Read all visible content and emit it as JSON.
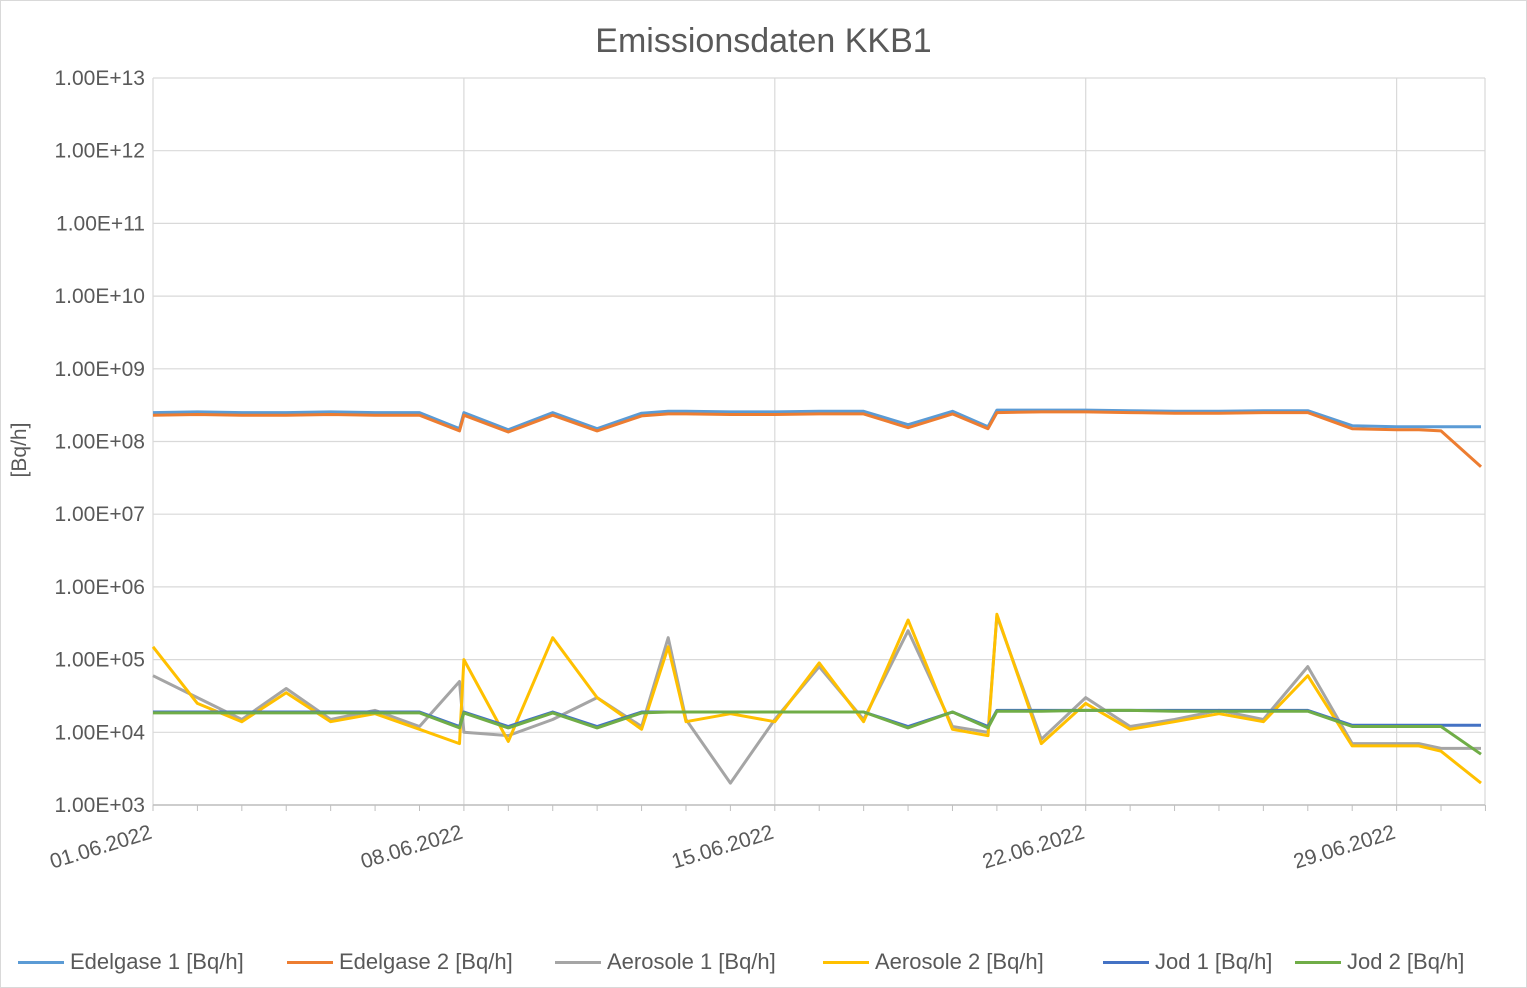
{
  "chart_data": {
    "type": "line",
    "title": "Emissionsdaten KKB1",
    "ylabel": "[Bq/h]",
    "xlabel": "",
    "y_scale": "log",
    "ylim": [
      1000,
      10000000000000
    ],
    "y_ticks": [
      "1.00E+03",
      "1.00E+04",
      "1.00E+05",
      "1.00E+06",
      "1.00E+07",
      "1.00E+08",
      "1.00E+09",
      "1.00E+10",
      "1.00E+11",
      "1.00E+12",
      "1.00E+13"
    ],
    "x_ticks": [
      "01.06.2022",
      "08.06.2022",
      "15.06.2022",
      "22.06.2022",
      "29.06.2022"
    ],
    "xlim": [
      "01.06.2022",
      "30.06.2022 23:59"
    ],
    "grid": "on",
    "legend_position": "bottom",
    "x_days": [
      1,
      2,
      3,
      4,
      5,
      6,
      7,
      7.9,
      8,
      9,
      10,
      11,
      12,
      12.6,
      13,
      14,
      15,
      16,
      17,
      18,
      19,
      19.8,
      20,
      21,
      22,
      23,
      24,
      25,
      26,
      27,
      28,
      29,
      29.5,
      30,
      30.9
    ],
    "series": [
      {
        "name": "Edelgase 1 [Bq/h]",
        "color": "#5b9bd5",
        "values": [
          250000000.0,
          255000000.0,
          250000000.0,
          250000000.0,
          255000000.0,
          250000000.0,
          250000000.0,
          150000000.0,
          250000000.0,
          145000000.0,
          250000000.0,
          150000000.0,
          245000000.0,
          260000000.0,
          260000000.0,
          255000000.0,
          255000000.0,
          260000000.0,
          260000000.0,
          170000000.0,
          260000000.0,
          160000000.0,
          270000000.0,
          270000000.0,
          270000000.0,
          265000000.0,
          260000000.0,
          260000000.0,
          265000000.0,
          265000000.0,
          165000000.0,
          160000000.0,
          160000000.0,
          160000000.0,
          160000000.0
        ]
      },
      {
        "name": "Edelgase 2 [Bq/h]",
        "color": "#ed7d31",
        "values": [
          230000000.0,
          235000000.0,
          230000000.0,
          230000000.0,
          235000000.0,
          230000000.0,
          230000000.0,
          140000000.0,
          230000000.0,
          135000000.0,
          230000000.0,
          140000000.0,
          225000000.0,
          240000000.0,
          240000000.0,
          235000000.0,
          235000000.0,
          240000000.0,
          240000000.0,
          155000000.0,
          240000000.0,
          150000000.0,
          250000000.0,
          255000000.0,
          255000000.0,
          250000000.0,
          245000000.0,
          245000000.0,
          250000000.0,
          250000000.0,
          150000000.0,
          145000000.0,
          145000000.0,
          140000000.0,
          45000000.0
        ]
      },
      {
        "name": "Aerosole 1 [Bq/h]",
        "color": "#a5a5a5",
        "values": [
          60000.0,
          30000.0,
          15000.0,
          40000.0,
          15000.0,
          20000.0,
          12000.0,
          50000.0,
          10000.0,
          9000.0,
          15000.0,
          30000.0,
          12000.0,
          200000.0,
          15000.0,
          2000.0,
          15000.0,
          80000.0,
          15000.0,
          250000.0,
          12000.0,
          10000.0,
          400000.0,
          8000.0,
          30000.0,
          12000.0,
          15000.0,
          20000.0,
          15000.0,
          80000.0,
          7000.0,
          7000.0,
          7000.0,
          6000.0,
          6000.0
        ]
      },
      {
        "name": "Aerosole 2 [Bq/h]",
        "color": "#ffc000",
        "values": [
          150000.0,
          25000.0,
          14000.0,
          35000.0,
          14000.0,
          18000.0,
          11000.0,
          7000.0,
          100000.0,
          7500.0,
          200000.0,
          30000.0,
          11000.0,
          150000.0,
          14000.0,
          18000.0,
          14000.0,
          90000.0,
          14000.0,
          350000.0,
          11000.0,
          9000.0,
          420000.0,
          7000.0,
          25000.0,
          11000.0,
          14000.0,
          18000.0,
          14000.0,
          60000.0,
          6500.0,
          6500.0,
          6500.0,
          5500.0,
          2000.0
        ]
      },
      {
        "name": "Jod 1 [Bq/h]",
        "color": "#4472c4",
        "values": [
          19000.0,
          19000.0,
          19000.0,
          19000.0,
          19000.0,
          19000.0,
          19000.0,
          12000.0,
          19000.0,
          12000.0,
          19000.0,
          12000.0,
          19000.0,
          19000.0,
          19000.0,
          19000.0,
          19000.0,
          19000.0,
          19000.0,
          12000.0,
          19000.0,
          12000.0,
          20000.0,
          20000.0,
          20000.0,
          20000.0,
          20000.0,
          20000.0,
          20000.0,
          20000.0,
          12500.0,
          12500.0,
          12500.0,
          12500.0,
          12500.0
        ]
      },
      {
        "name": "Jod 2 [Bq/h]",
        "color": "#70ad47",
        "values": [
          18500.0,
          18500.0,
          18500.0,
          18500.0,
          18500.0,
          18500.0,
          18500.0,
          11500.0,
          18500.0,
          11500.0,
          18500.0,
          11500.0,
          18500.0,
          19000.0,
          19000.0,
          19000.0,
          19000.0,
          19000.0,
          19000.0,
          11500.0,
          19000.0,
          11500.0,
          19500.0,
          19500.0,
          20000.0,
          20000.0,
          19500.0,
          19500.0,
          19500.0,
          19500.0,
          12000.0,
          12000.0,
          12000.0,
          12000.0,
          5000.0
        ]
      }
    ]
  }
}
